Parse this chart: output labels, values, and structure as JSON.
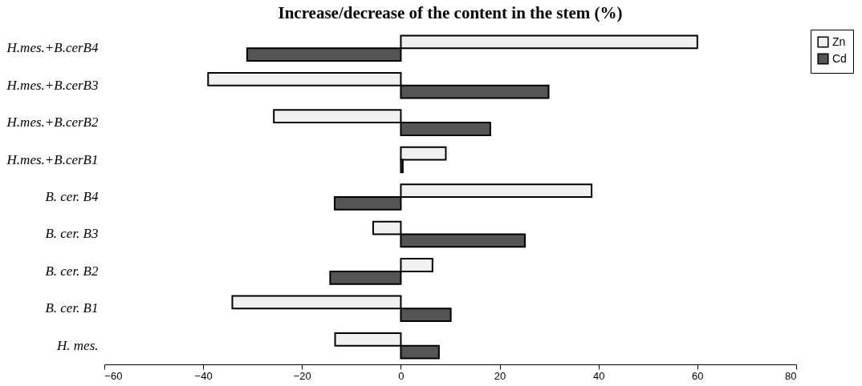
{
  "chart_data": {
    "type": "bar",
    "orientation": "horizontal",
    "title": "Increase/decrease of the content in the stem (%)",
    "categories": [
      "H.mes.+B.cerB4",
      "H.mes.+B.cerB3",
      "H.mes.+B.cerB2",
      "H.mes.+B.cerB1",
      "B. cer. B4",
      "B. cer. B3",
      "B. cer. B2",
      "B. cer. B1",
      "H. mes."
    ],
    "series": [
      {
        "name": "Zn",
        "color": "#f0f0f0",
        "values": [
          60,
          -39,
          -25.7,
          9.1,
          38.6,
          -5.6,
          6.4,
          -34.1,
          -13.3
        ]
      },
      {
        "name": "Cd",
        "color": "#555555",
        "values": [
          -31.1,
          29.9,
          18.1,
          0.4,
          -13.4,
          25.1,
          -14.3,
          10.1,
          7.7
        ]
      }
    ],
    "xlim": [
      -60,
      80
    ],
    "xticks": [
      -60,
      -40,
      -20,
      0,
      20,
      40,
      60,
      80
    ],
    "grid": false,
    "legend": "right"
  }
}
